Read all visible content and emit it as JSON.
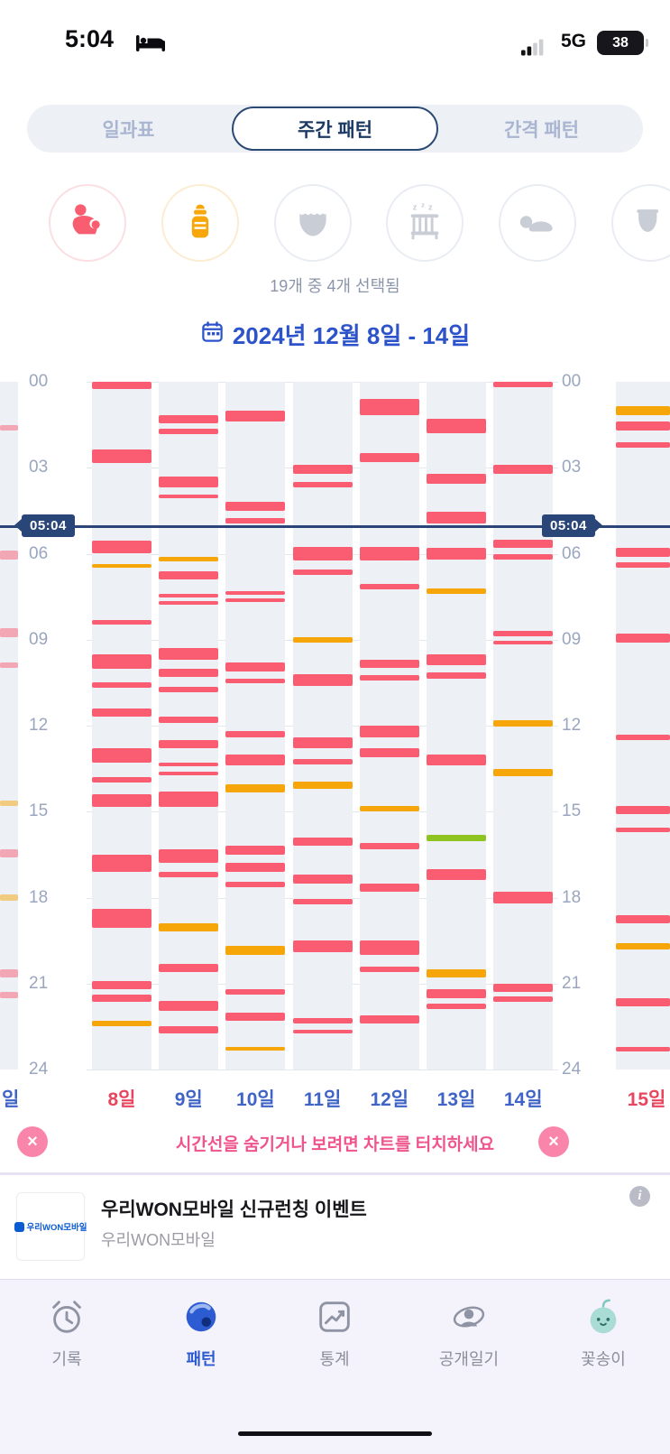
{
  "status_bar": {
    "time": "5:04",
    "network": "5G",
    "battery_percent": "38"
  },
  "tabs": {
    "items": [
      {
        "key": "daily-schedule",
        "label": "일과표",
        "selected": false
      },
      {
        "key": "weekly-pattern",
        "label": "주간 패턴",
        "selected": true
      },
      {
        "key": "interval-pattern",
        "label": "간격 패턴",
        "selected": false
      }
    ]
  },
  "activity_filter": {
    "summary": "19개 중 4개 선택됨",
    "icons": [
      {
        "name": "nursing",
        "selected": true,
        "color": "#f95e70"
      },
      {
        "name": "bottle",
        "selected": true,
        "color": "#f7a70a"
      },
      {
        "name": "diaper",
        "selected": false,
        "color": "#c8cdd6"
      },
      {
        "name": "sleep",
        "selected": false,
        "color": "#c8cdd6"
      },
      {
        "name": "tummy-time",
        "selected": false,
        "color": "#c8cdd6"
      },
      {
        "name": "more",
        "selected": false,
        "color": "#c8cdd6"
      }
    ]
  },
  "chart": {
    "type": "weekly-timeline",
    "title": "2024년 12월 8일 - 14일",
    "hint": "시간선을 숨기거나 보려면 차트를 터치하세요",
    "time_ticks": [
      "00",
      "03",
      "06",
      "09",
      "12",
      "15",
      "18",
      "21",
      "24"
    ],
    "hours_range": [
      0,
      24
    ],
    "current_time": {
      "label": "05:04",
      "hour": 5.07
    },
    "legend": {
      "nursing": "#fa5c72",
      "bottle": "#f6a609",
      "other": "#8fc31f"
    },
    "days": [
      {
        "label": "8일",
        "weekday": "sun",
        "bars": [
          [
            0.0,
            0.25,
            "n"
          ],
          [
            2.35,
            0.5,
            "n"
          ],
          [
            5.55,
            0.45,
            "n"
          ],
          [
            6.35,
            0.12,
            "b"
          ],
          [
            8.3,
            0.18,
            "n"
          ],
          [
            9.5,
            0.5,
            "n"
          ],
          [
            10.5,
            0.18,
            "n"
          ],
          [
            11.4,
            0.3,
            "n"
          ],
          [
            12.8,
            0.5,
            "n"
          ],
          [
            13.8,
            0.18,
            "n"
          ],
          [
            14.4,
            0.45,
            "n"
          ],
          [
            16.5,
            0.6,
            "n"
          ],
          [
            18.4,
            0.65,
            "n"
          ],
          [
            20.9,
            0.3,
            "n"
          ],
          [
            21.4,
            0.25,
            "n"
          ],
          [
            22.3,
            0.2,
            "b"
          ]
        ]
      },
      {
        "label": "9일",
        "weekday": "weekday",
        "bars": [
          [
            1.15,
            0.3,
            "n"
          ],
          [
            1.65,
            0.18,
            "n"
          ],
          [
            3.3,
            0.4,
            "n"
          ],
          [
            3.95,
            0.12,
            "n"
          ],
          [
            6.1,
            0.18,
            "b"
          ],
          [
            6.6,
            0.3,
            "n"
          ],
          [
            7.4,
            0.1,
            "n"
          ],
          [
            7.65,
            0.1,
            "n"
          ],
          [
            9.3,
            0.4,
            "n"
          ],
          [
            10.0,
            0.3,
            "n"
          ],
          [
            10.65,
            0.18,
            "n"
          ],
          [
            11.7,
            0.2,
            "n"
          ],
          [
            12.5,
            0.3,
            "n"
          ],
          [
            13.3,
            0.12,
            "n"
          ],
          [
            13.6,
            0.12,
            "n"
          ],
          [
            14.3,
            0.55,
            "n"
          ],
          [
            16.3,
            0.5,
            "n"
          ],
          [
            17.1,
            0.18,
            "n"
          ],
          [
            18.9,
            0.28,
            "b"
          ],
          [
            20.3,
            0.3,
            "n"
          ],
          [
            21.6,
            0.35,
            "n"
          ],
          [
            22.5,
            0.25,
            "n"
          ]
        ]
      },
      {
        "label": "10일",
        "weekday": "weekday",
        "bars": [
          [
            1.0,
            0.4,
            "n"
          ],
          [
            4.2,
            0.3,
            "n"
          ],
          [
            4.75,
            0.18,
            "n"
          ],
          [
            7.3,
            0.12,
            "n"
          ],
          [
            7.55,
            0.12,
            "n"
          ],
          [
            9.8,
            0.3,
            "n"
          ],
          [
            10.35,
            0.18,
            "n"
          ],
          [
            12.2,
            0.2,
            "n"
          ],
          [
            13.0,
            0.4,
            "n"
          ],
          [
            14.05,
            0.28,
            "b"
          ],
          [
            16.2,
            0.3,
            "n"
          ],
          [
            16.8,
            0.3,
            "n"
          ],
          [
            17.45,
            0.18,
            "n"
          ],
          [
            19.7,
            0.3,
            "b"
          ],
          [
            21.2,
            0.2,
            "n"
          ],
          [
            22.0,
            0.3,
            "n"
          ],
          [
            23.2,
            0.15,
            "b"
          ]
        ]
      },
      {
        "label": "11일",
        "weekday": "weekday",
        "bars": [
          [
            2.9,
            0.3,
            "n"
          ],
          [
            3.5,
            0.18,
            "n"
          ],
          [
            5.75,
            0.5,
            "n"
          ],
          [
            6.55,
            0.2,
            "n"
          ],
          [
            8.9,
            0.2,
            "b"
          ],
          [
            10.2,
            0.4,
            "n"
          ],
          [
            12.4,
            0.4,
            "n"
          ],
          [
            13.15,
            0.2,
            "n"
          ],
          [
            13.95,
            0.25,
            "b"
          ],
          [
            15.9,
            0.3,
            "n"
          ],
          [
            17.2,
            0.3,
            "n"
          ],
          [
            18.05,
            0.2,
            "n"
          ],
          [
            19.5,
            0.4,
            "n"
          ],
          [
            22.2,
            0.18,
            "n"
          ],
          [
            22.6,
            0.12,
            "n"
          ]
        ]
      },
      {
        "label": "12일",
        "weekday": "weekday",
        "bars": [
          [
            0.6,
            0.55,
            "n"
          ],
          [
            2.5,
            0.3,
            "n"
          ],
          [
            5.75,
            0.5,
            "n"
          ],
          [
            7.05,
            0.2,
            "n"
          ],
          [
            9.7,
            0.3,
            "n"
          ],
          [
            10.25,
            0.18,
            "n"
          ],
          [
            12.0,
            0.4,
            "n"
          ],
          [
            12.8,
            0.3,
            "n"
          ],
          [
            14.8,
            0.2,
            "b"
          ],
          [
            16.1,
            0.2,
            "n"
          ],
          [
            17.5,
            0.3,
            "n"
          ],
          [
            19.5,
            0.5,
            "n"
          ],
          [
            20.4,
            0.2,
            "n"
          ],
          [
            22.1,
            0.3,
            "n"
          ]
        ]
      },
      {
        "label": "13일",
        "weekday": "weekday",
        "bars": [
          [
            1.3,
            0.5,
            "n"
          ],
          [
            3.2,
            0.35,
            "n"
          ],
          [
            4.55,
            0.4,
            "n"
          ],
          [
            5.8,
            0.4,
            "n"
          ],
          [
            7.2,
            0.2,
            "b"
          ],
          [
            9.5,
            0.4,
            "n"
          ],
          [
            10.15,
            0.2,
            "n"
          ],
          [
            13.0,
            0.4,
            "n"
          ],
          [
            15.8,
            0.22,
            "g"
          ],
          [
            17.0,
            0.4,
            "n"
          ],
          [
            20.5,
            0.3,
            "b"
          ],
          [
            21.2,
            0.3,
            "n"
          ],
          [
            21.7,
            0.2,
            "n"
          ]
        ]
      },
      {
        "label": "14일",
        "weekday": "sat",
        "bars": [
          [
            0.0,
            0.18,
            "n"
          ],
          [
            2.9,
            0.3,
            "n"
          ],
          [
            5.5,
            0.3,
            "n"
          ],
          [
            6.0,
            0.2,
            "n"
          ],
          [
            8.7,
            0.18,
            "n"
          ],
          [
            9.05,
            0.12,
            "n"
          ],
          [
            11.8,
            0.22,
            "b"
          ],
          [
            13.5,
            0.25,
            "b"
          ],
          [
            17.8,
            0.4,
            "n"
          ],
          [
            21.0,
            0.28,
            "n"
          ],
          [
            21.45,
            0.18,
            "n"
          ]
        ]
      }
    ],
    "prev_day_partial": {
      "label": "일",
      "weekday": "sat",
      "bars": [
        [
          1.5,
          0.2,
          "n"
        ],
        [
          5.9,
          0.3,
          "n"
        ],
        [
          8.6,
          0.3,
          "n"
        ],
        [
          9.8,
          0.2,
          "n"
        ],
        [
          14.6,
          0.2,
          "b"
        ],
        [
          16.3,
          0.3,
          "n"
        ],
        [
          17.9,
          0.2,
          "b"
        ],
        [
          20.5,
          0.3,
          "n"
        ],
        [
          21.3,
          0.2,
          "n"
        ]
      ]
    },
    "next_day_partial": {
      "label": "15일",
      "weekday": "sun",
      "bars": [
        [
          0.85,
          0.3,
          "b"
        ],
        [
          1.4,
          0.3,
          "n"
        ],
        [
          2.1,
          0.2,
          "n"
        ],
        [
          5.8,
          0.3,
          "n"
        ],
        [
          6.3,
          0.2,
          "n"
        ],
        [
          8.8,
          0.3,
          "n"
        ],
        [
          12.3,
          0.2,
          "n"
        ],
        [
          14.8,
          0.3,
          "n"
        ],
        [
          15.55,
          0.18,
          "n"
        ],
        [
          18.6,
          0.3,
          "n"
        ],
        [
          19.6,
          0.2,
          "b"
        ],
        [
          21.5,
          0.3,
          "n"
        ],
        [
          23.2,
          0.18,
          "n"
        ]
      ]
    },
    "day_label_colors": {
      "sun": "#e8455f",
      "sat": "#3f63c6",
      "weekday": "#3f63c6"
    }
  },
  "ad_banner": {
    "title": "우리WON모바일 신규런칭 이벤트",
    "advertiser": "우리WON모바일",
    "logo_text": "우리WON모바일"
  },
  "bottom_nav": {
    "items": [
      {
        "key": "record",
        "label": "기록",
        "selected": false
      },
      {
        "key": "pattern",
        "label": "패턴",
        "selected": true
      },
      {
        "key": "stats",
        "label": "통계",
        "selected": false
      },
      {
        "key": "public-diary",
        "label": "공개일기",
        "selected": false
      },
      {
        "key": "blossom",
        "label": "꽃송이",
        "selected": false
      }
    ]
  }
}
